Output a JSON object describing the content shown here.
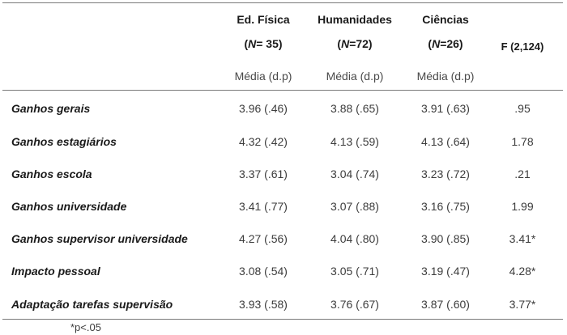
{
  "table": {
    "columns": [
      {
        "title": "Ed. Física",
        "n_label": "N",
        "n_value": "= 35)",
        "stat": "Média (d.p)"
      },
      {
        "title": "Humanidades",
        "n_label": "N",
        "n_value": "=72)",
        "stat": "Média (d.p)"
      },
      {
        "title": "Ciências",
        "n_label": "N",
        "n_value": "=26)",
        "stat": "Média (d.p)"
      }
    ],
    "f_header": "F (2,124)",
    "rows": [
      {
        "label": "Ganhos gerais",
        "values": [
          "3.96 (.46)",
          "3.88 (.65)",
          "3.91 (.63)"
        ],
        "f": ".95"
      },
      {
        "label": "Ganhos estagiários",
        "values": [
          "4.32 (.42)",
          "4.13 (.59)",
          "4.13 (.64)"
        ],
        "f": "1.78"
      },
      {
        "label": "Ganhos escola",
        "values": [
          "3.37 (.61)",
          "3.04 (.74)",
          "3.23 (.72)"
        ],
        "f": ".21"
      },
      {
        "label": "Ganhos universidade",
        "values": [
          "3.41 (.77)",
          "3.07 (.88)",
          "3.16 (.75)"
        ],
        "f": "1.99"
      },
      {
        "label": "Ganhos supervisor universidade",
        "values": [
          "4.27 (.56)",
          "4.04 (.80)",
          "3.90 (.85)"
        ],
        "f": "3.41*"
      },
      {
        "label": "Impacto pessoal",
        "values": [
          "3.08 (.54)",
          "3.05 (.71)",
          "3.19 (.47)"
        ],
        "f": "4.28*"
      },
      {
        "label": "Adaptação tarefas supervisão",
        "values": [
          "3.93 (.58)",
          "3.76 (.67)",
          "3.87 (.60)"
        ],
        "f": "3.77*"
      }
    ],
    "footnote": "*p<.05"
  }
}
